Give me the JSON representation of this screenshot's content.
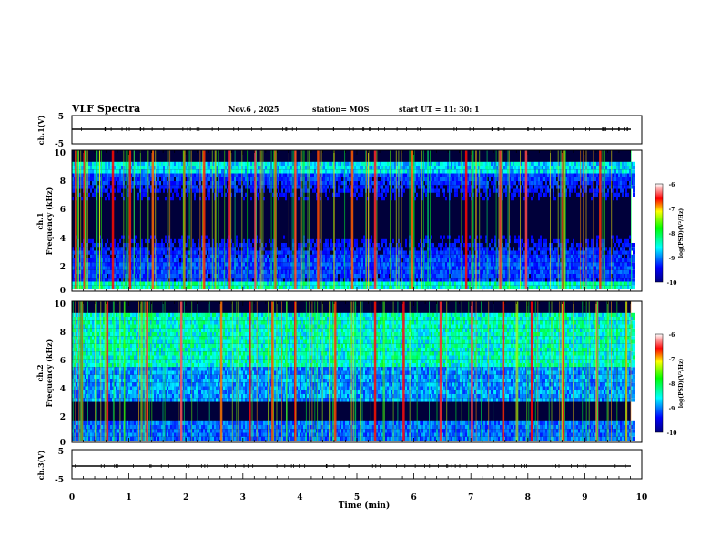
{
  "header": {
    "title": "VLF Spectra",
    "date": "Nov.6 , 2025",
    "station": "station= MOS",
    "start": "start UT = 11: 30: 1"
  },
  "chart_data": [
    {
      "type": "line",
      "name": "ch1-waveform",
      "ylabel": "ch.1(V)",
      "ylim": [
        -5,
        5
      ],
      "yticks": [
        "5",
        "-5"
      ],
      "xlim": [
        0,
        10
      ],
      "level": 0
    },
    {
      "type": "heatmap",
      "name": "ch1-spectrogram",
      "ylabel_line1": "ch.1",
      "ylabel_line2": "Frequency (kHz)",
      "ylim": [
        0,
        10
      ],
      "yticks": [
        "0",
        "2",
        "4",
        "6",
        "8",
        "10"
      ],
      "xlim": [
        0,
        9.85
      ],
      "colorbar": {
        "label": "log(PSD)(V²/Hz)",
        "range": [
          -10,
          -6
        ],
        "ticks": [
          "-6",
          "-7",
          "-8",
          "-9",
          "-10"
        ]
      },
      "strong_bursts_min": [
        0.05,
        0.2,
        0.7,
        1.0,
        1.4,
        1.95,
        2.3,
        2.75,
        3.2,
        3.55,
        3.9,
        4.3,
        4.9,
        5.3,
        5.95,
        6.9,
        7.5,
        7.95,
        8.6,
        9.25
      ]
    },
    {
      "type": "heatmap",
      "name": "ch2-spectrogram",
      "ylabel_line1": "ch.2",
      "ylabel_line2": "Frequency (kHz)",
      "ylim": [
        0,
        10
      ],
      "yticks": [
        "0",
        "2",
        "4",
        "6",
        "8",
        "10"
      ],
      "xlim": [
        0,
        9.85
      ],
      "colorbar": {
        "label": "log(PSD)(V²/Hz)",
        "range": [
          -10,
          -6
        ],
        "ticks": [
          "-6",
          "-7",
          "-8",
          "-9",
          "-10"
        ]
      },
      "strong_bursts_min": [
        0.15,
        0.6,
        1.3,
        1.9,
        2.6,
        3.1,
        3.5,
        3.9,
        4.6,
        5.3,
        5.8,
        6.45,
        7.0,
        7.55,
        8.05,
        8.6,
        9.2,
        9.7
      ]
    },
    {
      "type": "line",
      "name": "ch3-waveform",
      "ylabel": "ch.3(V)",
      "ylim": [
        -5,
        5
      ],
      "yticks": [
        "5",
        "-5"
      ],
      "xlim": [
        0,
        10
      ],
      "level": 0
    }
  ],
  "time_axis": {
    "label": "Time (min)",
    "ticks": [
      "0",
      "1",
      "2",
      "3",
      "4",
      "5",
      "6",
      "7",
      "8",
      "9",
      "10"
    ],
    "range": [
      0,
      10
    ]
  }
}
